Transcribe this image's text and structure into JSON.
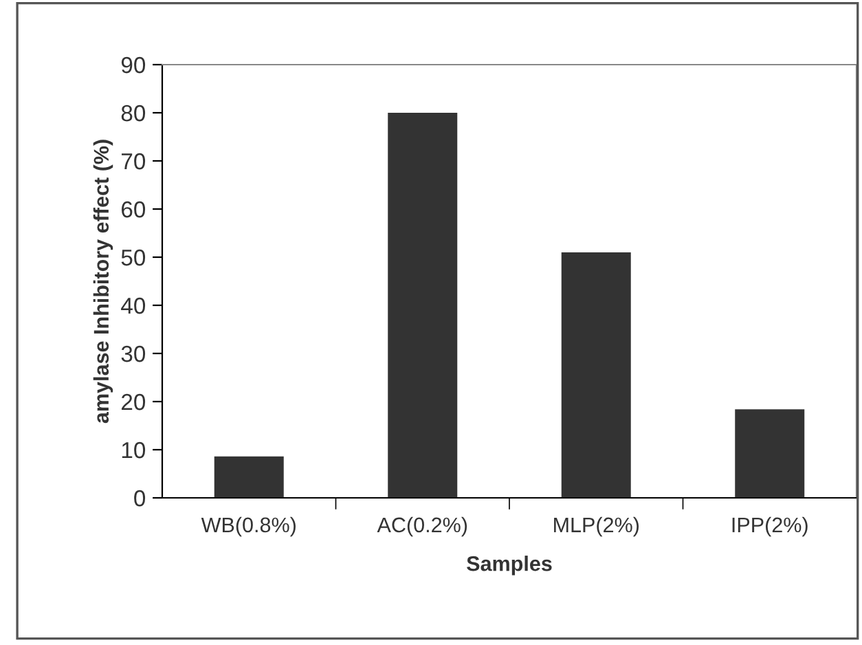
{
  "chart_data": {
    "type": "bar",
    "xlabel": "Samples",
    "ylabel": "amylase Inhibitory effect (%)",
    "categories": [
      "WB(0.8%)",
      "AC(0.2%)",
      "MLP(2%)",
      "IPP(2%)"
    ],
    "values": [
      8.6,
      80,
      51,
      18.4
    ],
    "color": "#333333",
    "ylim": [
      0,
      90
    ],
    "yticks": [
      0,
      10,
      20,
      30,
      40,
      50,
      60,
      70,
      80,
      90
    ],
    "grid": false,
    "legend": false
  }
}
